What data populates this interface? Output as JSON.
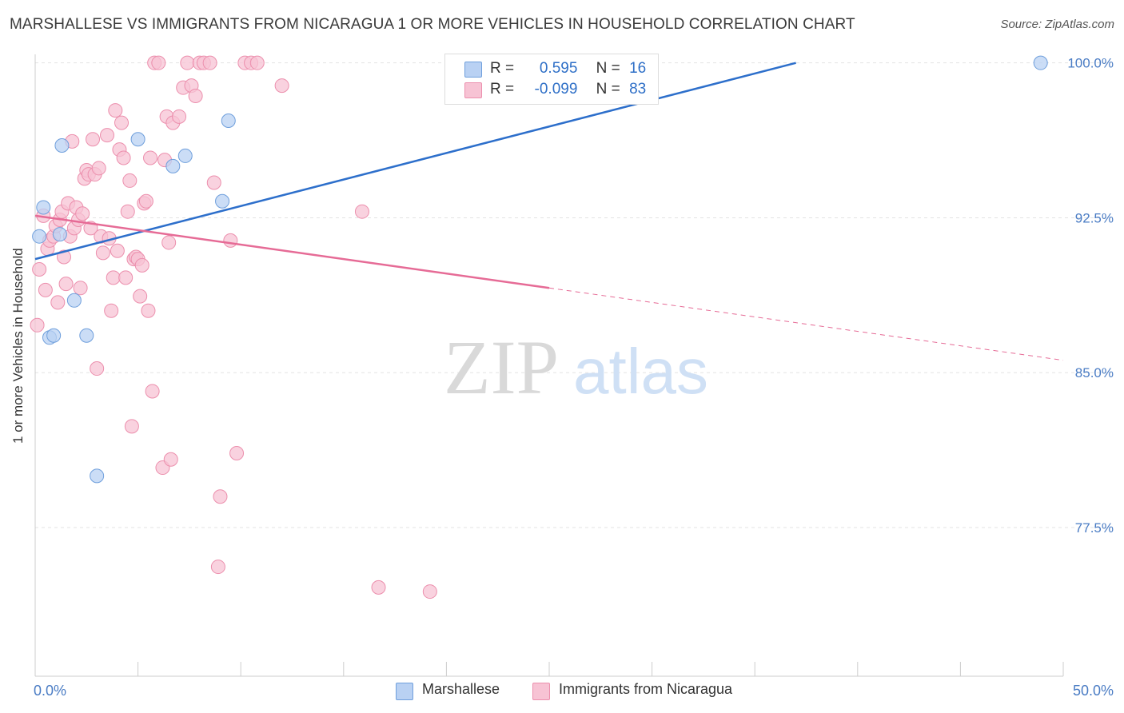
{
  "title": "MARSHALLESE VS IMMIGRANTS FROM NICARAGUA 1 OR MORE VEHICLES IN HOUSEHOLD CORRELATION CHART",
  "source": "Source: ZipAtlas.com",
  "watermark": {
    "zip": "ZIP",
    "atlas": "atlas"
  },
  "colors": {
    "blue_fill": "#b9d1f3",
    "blue_stroke": "#6f9fdc",
    "blue_line": "#2d6fcb",
    "pink_fill": "#f7c3d4",
    "pink_stroke": "#ec8fad",
    "pink_line": "#e66b96",
    "tick_label": "#4a7cc4",
    "grid": "#e3e3e3"
  },
  "legend": {
    "rows": [
      {
        "r_label": "R =",
        "r_value": "0.595",
        "n_label": "N =",
        "n_value": "16"
      },
      {
        "r_label": "R =",
        "r_value": "-0.099",
        "n_label": "N =",
        "n_value": "83"
      }
    ]
  },
  "chart_data": {
    "type": "scatter",
    "title": "MARSHALLESE VS IMMIGRANTS FROM NICARAGUA 1 OR MORE VEHICLES IN HOUSEHOLD CORRELATION CHART",
    "xlabel": "",
    "ylabel": "1 or more Vehicles in Household",
    "xlim": [
      0,
      50
    ],
    "ylim": [
      70.3,
      100.8
    ],
    "x_ticks": [
      0,
      5,
      10,
      15,
      20,
      25,
      30,
      35,
      40,
      45,
      50
    ],
    "x_tick_labels": [
      "0.0%",
      "",
      "",
      "",
      "",
      "",
      "",
      "",
      "",
      "",
      "50.0%"
    ],
    "y_ticks": [
      77.5,
      85.0,
      92.5,
      100.0
    ],
    "y_tick_labels": [
      "77.5%",
      "85.0%",
      "92.5%",
      "100.0%"
    ],
    "grid": true,
    "legend_position": "top-center",
    "series": [
      {
        "name": "Marshallese",
        "points": [
          [
            0.2,
            91.6
          ],
          [
            0.4,
            93.0
          ],
          [
            0.7,
            86.7
          ],
          [
            0.9,
            86.8
          ],
          [
            1.2,
            91.7
          ],
          [
            1.3,
            96.0
          ],
          [
            1.9,
            88.5
          ],
          [
            2.5,
            86.8
          ],
          [
            3.0,
            80.0
          ],
          [
            5.0,
            96.3
          ],
          [
            6.7,
            95.0
          ],
          [
            7.3,
            95.5
          ],
          [
            9.1,
            93.3
          ],
          [
            9.4,
            97.2
          ],
          [
            27.8,
            100.0
          ],
          [
            48.9,
            100.0
          ]
        ],
        "trend": {
          "x": [
            0.0,
            37.0
          ],
          "y": [
            90.5,
            100.0
          ]
        }
      },
      {
        "name": "Immigrants from Nicaragua",
        "points": [
          [
            0.1,
            87.3
          ],
          [
            0.2,
            90.0
          ],
          [
            0.4,
            92.6
          ],
          [
            0.5,
            89.0
          ],
          [
            0.6,
            91.0
          ],
          [
            0.7,
            91.4
          ],
          [
            0.9,
            91.6
          ],
          [
            1.0,
            92.1
          ],
          [
            1.1,
            88.4
          ],
          [
            1.2,
            92.4
          ],
          [
            1.3,
            92.8
          ],
          [
            1.4,
            90.6
          ],
          [
            1.5,
            89.3
          ],
          [
            1.6,
            93.2
          ],
          [
            1.7,
            91.6
          ],
          [
            1.8,
            96.2
          ],
          [
            1.9,
            92.0
          ],
          [
            2.0,
            93.0
          ],
          [
            2.1,
            92.4
          ],
          [
            2.2,
            89.1
          ],
          [
            2.3,
            92.7
          ],
          [
            2.4,
            94.4
          ],
          [
            2.5,
            94.8
          ],
          [
            2.6,
            94.6
          ],
          [
            2.7,
            92.0
          ],
          [
            2.8,
            96.3
          ],
          [
            2.9,
            94.6
          ],
          [
            3.0,
            85.2
          ],
          [
            3.1,
            94.9
          ],
          [
            3.2,
            91.6
          ],
          [
            3.3,
            90.8
          ],
          [
            3.5,
            96.5
          ],
          [
            3.6,
            91.5
          ],
          [
            3.7,
            88.0
          ],
          [
            3.8,
            89.6
          ],
          [
            3.9,
            97.7
          ],
          [
            4.0,
            90.9
          ],
          [
            4.1,
            95.8
          ],
          [
            4.2,
            97.1
          ],
          [
            4.3,
            95.4
          ],
          [
            4.4,
            89.6
          ],
          [
            4.5,
            92.8
          ],
          [
            4.6,
            94.3
          ],
          [
            4.7,
            82.4
          ],
          [
            4.8,
            90.5
          ],
          [
            4.9,
            90.6
          ],
          [
            5.0,
            90.5
          ],
          [
            5.1,
            88.7
          ],
          [
            5.2,
            90.2
          ],
          [
            5.3,
            93.2
          ],
          [
            5.4,
            93.3
          ],
          [
            5.5,
            88.0
          ],
          [
            5.6,
            95.4
          ],
          [
            5.7,
            84.1
          ],
          [
            5.8,
            100.0
          ],
          [
            6.0,
            100.0
          ],
          [
            6.2,
            80.4
          ],
          [
            6.3,
            95.3
          ],
          [
            6.4,
            97.4
          ],
          [
            6.5,
            91.3
          ],
          [
            6.6,
            80.8
          ],
          [
            6.7,
            97.1
          ],
          [
            7.0,
            97.4
          ],
          [
            7.2,
            98.8
          ],
          [
            7.4,
            100.0
          ],
          [
            7.6,
            98.9
          ],
          [
            7.8,
            98.4
          ],
          [
            8.0,
            100.0
          ],
          [
            8.2,
            100.0
          ],
          [
            8.5,
            100.0
          ],
          [
            8.7,
            94.2
          ],
          [
            8.9,
            75.6
          ],
          [
            9.0,
            79.0
          ],
          [
            9.5,
            91.4
          ],
          [
            9.8,
            81.1
          ],
          [
            10.2,
            100.0
          ],
          [
            10.5,
            100.0
          ],
          [
            10.8,
            100.0
          ],
          [
            12.0,
            98.9
          ],
          [
            15.9,
            92.8
          ],
          [
            16.7,
            74.6
          ],
          [
            19.2,
            74.4
          ],
          [
            20.6,
            100.0
          ]
        ],
        "trend": {
          "x": [
            0.0,
            25.0
          ],
          "y": [
            92.6,
            89.1
          ]
        },
        "trend_dashed": {
          "x": [
            25.0,
            50.0
          ],
          "y": [
            89.1,
            85.6
          ]
        }
      }
    ]
  },
  "bottom_legend": [
    {
      "label": "Marshallese"
    },
    {
      "label": "Immigrants from Nicaragua"
    }
  ]
}
